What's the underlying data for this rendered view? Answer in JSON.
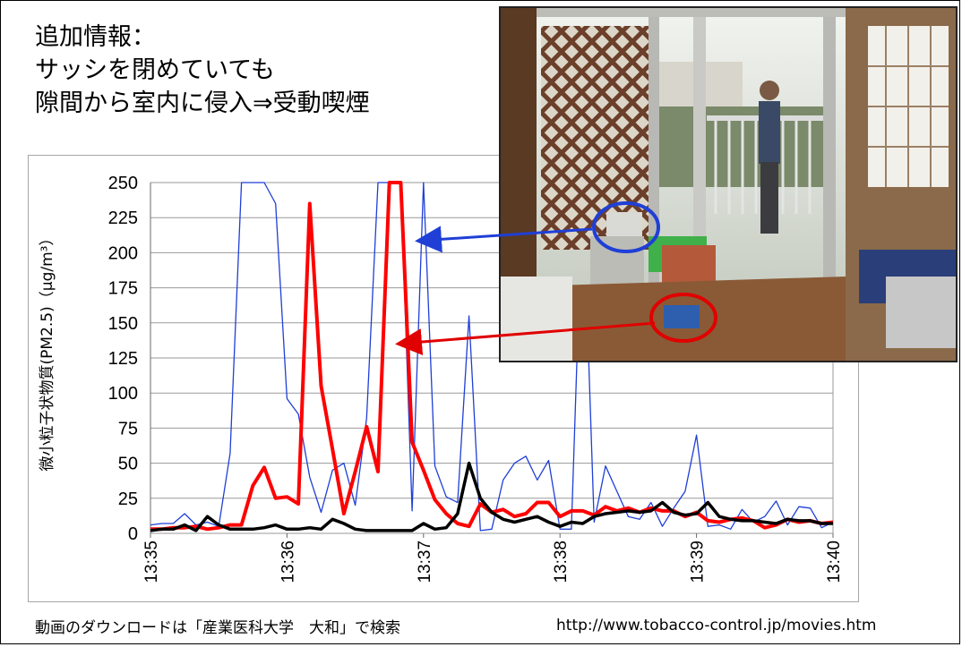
{
  "title": {
    "line1": "追加情報：",
    "line2": "サッシを閉めていても",
    "line3": "隙間から室内に侵入⇒受動喫煙"
  },
  "footer": {
    "note": "動画のダウンロードは「産業医科大学　大和」で検索",
    "url": "http://www.tobacco-control.jp/movies.htm"
  },
  "colors": {
    "indoor": "#ff0000",
    "outdoor": "#1f3fd6",
    "background_level": "#000000"
  },
  "chart_data": {
    "type": "line",
    "ylabel": "微小粒子状物質(PM2.5)（μg/m³）",
    "xlabel": "",
    "ylim": [
      0,
      250
    ],
    "yticks": [
      0,
      25,
      50,
      75,
      100,
      125,
      150,
      175,
      200,
      225,
      250
    ],
    "x_tick_labels": [
      "13:35",
      "13:36",
      "13:37",
      "13:38",
      "13:39",
      "13:40"
    ],
    "grid": true,
    "x": [
      "13:35:00",
      "13:35:05",
      "13:35:10",
      "13:35:15",
      "13:35:20",
      "13:35:25",
      "13:35:30",
      "13:35:35",
      "13:35:40",
      "13:35:45",
      "13:35:50",
      "13:35:55",
      "13:36:00",
      "13:36:05",
      "13:36:10",
      "13:36:15",
      "13:36:20",
      "13:36:25",
      "13:36:30",
      "13:36:35",
      "13:36:40",
      "13:36:45",
      "13:36:50",
      "13:36:55",
      "13:37:00",
      "13:37:05",
      "13:37:10",
      "13:37:15",
      "13:37:20",
      "13:37:25",
      "13:37:30",
      "13:37:35",
      "13:37:40",
      "13:37:45",
      "13:37:50",
      "13:37:55",
      "13:38:00",
      "13:38:05",
      "13:38:10",
      "13:38:15",
      "13:38:20",
      "13:38:25",
      "13:38:30",
      "13:38:35",
      "13:38:40",
      "13:38:45",
      "13:38:50",
      "13:38:55",
      "13:39:00",
      "13:39:05",
      "13:39:10",
      "13:39:15",
      "13:39:20",
      "13:39:25",
      "13:39:30",
      "13:39:35",
      "13:39:40",
      "13:39:45",
      "13:39:50",
      "13:39:55",
      "13:40:00"
    ],
    "series": [
      {
        "color": "#1f3fd6",
        "values": [
          6,
          7,
          7,
          14,
          6,
          8,
          5,
          57,
          250,
          250,
          250,
          235,
          96,
          85,
          40,
          15,
          45,
          50,
          20,
          82,
          250,
          250,
          250,
          16,
          250,
          48,
          26,
          22,
          155,
          2,
          3,
          38,
          50,
          55,
          38,
          52,
          3,
          3,
          250,
          8,
          48,
          30,
          12,
          10,
          22,
          5,
          18,
          30,
          70,
          5,
          6,
          3,
          17,
          8,
          12,
          23,
          6,
          19,
          18,
          4,
          8
        ]
      },
      {
        "color": "#ff0000",
        "values": [
          3,
          3,
          4,
          4,
          5,
          3,
          4,
          6,
          6,
          34,
          47,
          25,
          26,
          21,
          235,
          105,
          60,
          14,
          44,
          76,
          44,
          250,
          250,
          65,
          45,
          24,
          14,
          7,
          5,
          21,
          15,
          17,
          12,
          14,
          22,
          22,
          12,
          16,
          16,
          13,
          19,
          16,
          18,
          15,
          18,
          16,
          16,
          12,
          15,
          9,
          8,
          10,
          11,
          9,
          4,
          6,
          10,
          8,
          9,
          7,
          8
        ]
      },
      {
        "color": "#000000",
        "values": [
          2,
          3,
          3,
          6,
          2,
          12,
          6,
          3,
          3,
          3,
          4,
          6,
          3,
          3,
          4,
          3,
          10,
          7,
          3,
          2,
          2,
          2,
          2,
          2,
          7,
          3,
          4,
          14,
          50,
          25,
          15,
          10,
          8,
          10,
          12,
          8,
          5,
          8,
          7,
          12,
          14,
          15,
          16,
          15,
          16,
          22,
          15,
          13,
          14,
          22,
          12,
          10,
          9,
          9,
          8,
          7,
          10,
          9,
          9,
          7,
          7
        ]
      }
    ]
  }
}
